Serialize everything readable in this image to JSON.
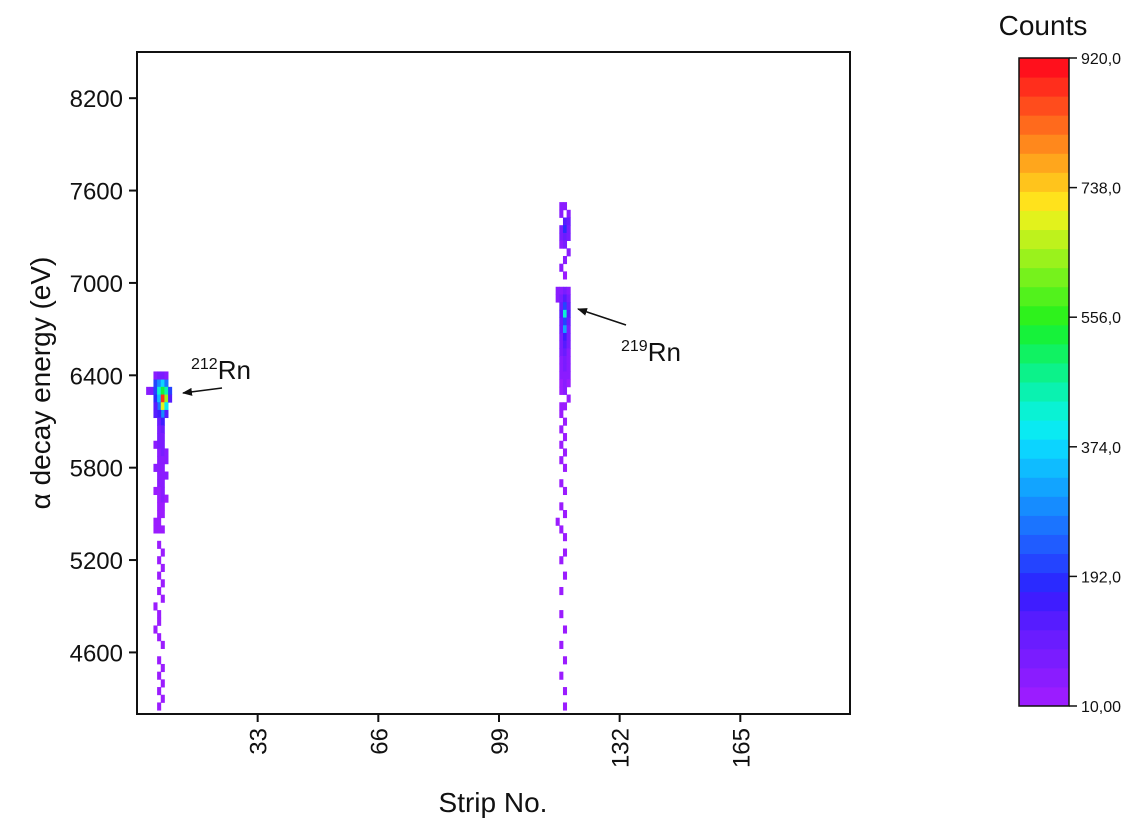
{
  "chart_data": {
    "type": "heatmap",
    "xlabel": "Strip No.",
    "ylabel": "α decay energy (eV)",
    "xlim": [
      0,
      195
    ],
    "ylim": [
      4200,
      8500
    ],
    "x_ticks": [
      "33",
      "66",
      "99",
      "132",
      "165"
    ],
    "x_tick_values": [
      33,
      66,
      99,
      132,
      165
    ],
    "y_ticks": [
      "4600",
      "5200",
      "5800",
      "6400",
      "7000",
      "7600",
      "8200"
    ],
    "y_tick_values": [
      4600,
      5200,
      5800,
      6400,
      7000,
      7600,
      8200
    ],
    "annotations": [
      {
        "id": "rn212",
        "mass": "212",
        "element": "Rn",
        "x": 9,
        "y": 6250
      },
      {
        "id": "rn219",
        "mass": "219",
        "element": "Rn",
        "x": 120,
        "y": 6800
      }
    ],
    "colorbar": {
      "title": "Counts",
      "min": 10,
      "max": 920,
      "tick_labels": [
        "920,0",
        "738,0",
        "556,0",
        "374,0",
        "192,0",
        "10,00"
      ],
      "tick_values": [
        920,
        738,
        556,
        374,
        192,
        10
      ],
      "colors": [
        "#9b1cff",
        "#8a1cff",
        "#7a1cff",
        "#6a1cff",
        "#561cff",
        "#3f1cff",
        "#2a2aff",
        "#2444ff",
        "#205cff",
        "#1b74ff",
        "#168cff",
        "#12a4ff",
        "#0fbcff",
        "#0cd4ff",
        "#0aeaf2",
        "#0af2d4",
        "#0af2b0",
        "#0cf28a",
        "#10f262",
        "#16f23a",
        "#2ef21c",
        "#52f21c",
        "#76f21c",
        "#9af21c",
        "#bef21c",
        "#e2f21c",
        "#ffe21c",
        "#ffc41c",
        "#ffa61c",
        "#ff881c",
        "#ff6a1c",
        "#ff4c1c",
        "#ff2e1c",
        "#ff101c"
      ]
    },
    "points": [
      [
        3,
        6300,
        60
      ],
      [
        4,
        6300,
        80
      ],
      [
        5,
        6350,
        200
      ],
      [
        5,
        6300,
        220
      ],
      [
        5,
        6250,
        180
      ],
      [
        6,
        6350,
        300
      ],
      [
        6,
        6300,
        420
      ],
      [
        6,
        6250,
        350
      ],
      [
        6,
        6200,
        260
      ],
      [
        7,
        6350,
        380
      ],
      [
        7,
        6300,
        520
      ],
      [
        7,
        6250,
        880
      ],
      [
        7,
        6200,
        700
      ],
      [
        7,
        6150,
        300
      ],
      [
        8,
        6350,
        260
      ],
      [
        8,
        6300,
        460
      ],
      [
        8,
        6250,
        650
      ],
      [
        8,
        6200,
        400
      ],
      [
        9,
        6300,
        200
      ],
      [
        9,
        6250,
        120
      ],
      [
        5,
        6400,
        60
      ],
      [
        6,
        6400,
        70
      ],
      [
        7,
        6400,
        80
      ],
      [
        8,
        6400,
        60
      ],
      [
        6,
        6150,
        160
      ],
      [
        5,
        6150,
        120
      ],
      [
        6,
        6100,
        110
      ],
      [
        7,
        6100,
        150
      ],
      [
        8,
        6150,
        140
      ],
      [
        5,
        6200,
        130
      ],
      [
        6,
        6050,
        90
      ],
      [
        7,
        6050,
        100
      ],
      [
        6,
        6000,
        80
      ],
      [
        7,
        6000,
        90
      ],
      [
        5,
        5950,
        60
      ],
      [
        6,
        5950,
        70
      ],
      [
        7,
        5950,
        80
      ],
      [
        6,
        5900,
        60
      ],
      [
        7,
        5900,
        70
      ],
      [
        8,
        5900,
        50
      ],
      [
        6,
        5850,
        50
      ],
      [
        7,
        5850,
        60
      ],
      [
        8,
        5850,
        50
      ],
      [
        6,
        5800,
        50
      ],
      [
        7,
        5800,
        60
      ],
      [
        5,
        5800,
        40
      ],
      [
        6,
        5750,
        40
      ],
      [
        7,
        5750,
        50
      ],
      [
        8,
        5750,
        40
      ],
      [
        6,
        5700,
        40
      ],
      [
        7,
        5700,
        40
      ],
      [
        6,
        5650,
        30
      ],
      [
        7,
        5650,
        40
      ],
      [
        5,
        5650,
        30
      ],
      [
        6,
        5600,
        30
      ],
      [
        7,
        5600,
        40
      ],
      [
        8,
        5600,
        30
      ],
      [
        6,
        5550,
        30
      ],
      [
        7,
        5550,
        30
      ],
      [
        6,
        5500,
        30
      ],
      [
        7,
        5500,
        30
      ],
      [
        5,
        5450,
        30
      ],
      [
        6,
        5450,
        30
      ],
      [
        6,
        5400,
        20
      ],
      [
        7,
        5400,
        30
      ],
      [
        5,
        5400,
        20
      ],
      [
        6,
        5300,
        20
      ],
      [
        7,
        5250,
        20
      ],
      [
        6,
        5200,
        20
      ],
      [
        7,
        5150,
        20
      ],
      [
        6,
        5100,
        20
      ],
      [
        7,
        5050,
        20
      ],
      [
        6,
        5000,
        20
      ],
      [
        7,
        4950,
        20
      ],
      [
        5,
        4900,
        20
      ],
      [
        6,
        4850,
        20
      ],
      [
        6,
        4800,
        20
      ],
      [
        5,
        4750,
        20
      ],
      [
        6,
        4700,
        20
      ],
      [
        7,
        4650,
        20
      ],
      [
        6,
        4550,
        20
      ],
      [
        7,
        4500,
        20
      ],
      [
        6,
        4450,
        20
      ],
      [
        7,
        4400,
        20
      ],
      [
        6,
        4350,
        20
      ],
      [
        7,
        4300,
        20
      ],
      [
        6,
        4250,
        20
      ],
      [
        116,
        7500,
        40
      ],
      [
        117,
        7500,
        50
      ],
      [
        118,
        7450,
        60
      ],
      [
        116,
        7450,
        50
      ],
      [
        117,
        7400,
        120
      ],
      [
        118,
        7400,
        110
      ],
      [
        116,
        7350,
        90
      ],
      [
        117,
        7350,
        180
      ],
      [
        118,
        7350,
        90
      ],
      [
        116,
        7300,
        80
      ],
      [
        117,
        7300,
        100
      ],
      [
        118,
        7300,
        80
      ],
      [
        116,
        7250,
        60
      ],
      [
        117,
        7250,
        70
      ],
      [
        118,
        7200,
        50
      ],
      [
        117,
        7150,
        40
      ],
      [
        116,
        7100,
        40
      ],
      [
        117,
        7050,
        30
      ],
      [
        115,
        6950,
        40
      ],
      [
        116,
        6950,
        60
      ],
      [
        117,
        6950,
        80
      ],
      [
        118,
        6950,
        60
      ],
      [
        115,
        6900,
        60
      ],
      [
        116,
        6900,
        90
      ],
      [
        117,
        6900,
        140
      ],
      [
        118,
        6900,
        90
      ],
      [
        116,
        6850,
        100
      ],
      [
        117,
        6850,
        220
      ],
      [
        118,
        6850,
        110
      ],
      [
        116,
        6800,
        120
      ],
      [
        117,
        6800,
        420
      ],
      [
        118,
        6800,
        130
      ],
      [
        116,
        6750,
        110
      ],
      [
        117,
        6750,
        200
      ],
      [
        118,
        6750,
        100
      ],
      [
        116,
        6700,
        100
      ],
      [
        117,
        6700,
        320
      ],
      [
        118,
        6700,
        90
      ],
      [
        116,
        6650,
        90
      ],
      [
        117,
        6650,
        160
      ],
      [
        118,
        6650,
        80
      ],
      [
        116,
        6600,
        80
      ],
      [
        117,
        6600,
        130
      ],
      [
        118,
        6600,
        70
      ],
      [
        116,
        6550,
        70
      ],
      [
        117,
        6550,
        100
      ],
      [
        118,
        6550,
        60
      ],
      [
        116,
        6500,
        60
      ],
      [
        117,
        6500,
        90
      ],
      [
        118,
        6500,
        50
      ],
      [
        116,
        6450,
        50
      ],
      [
        117,
        6450,
        70
      ],
      [
        118,
        6450,
        40
      ],
      [
        116,
        6400,
        40
      ],
      [
        117,
        6400,
        60
      ],
      [
        118,
        6400,
        40
      ],
      [
        116,
        6350,
        30
      ],
      [
        117,
        6350,
        50
      ],
      [
        118,
        6350,
        30
      ],
      [
        116,
        6300,
        30
      ],
      [
        117,
        6300,
        40
      ],
      [
        118,
        6250,
        30
      ],
      [
        116,
        6200,
        30
      ],
      [
        117,
        6200,
        30
      ],
      [
        116,
        6150,
        20
      ],
      [
        117,
        6100,
        20
      ],
      [
        116,
        6050,
        20
      ],
      [
        117,
        6000,
        20
      ],
      [
        116,
        5950,
        20
      ],
      [
        117,
        5900,
        20
      ],
      [
        116,
        5850,
        20
      ],
      [
        117,
        5800,
        20
      ],
      [
        116,
        5700,
        20
      ],
      [
        117,
        5650,
        20
      ],
      [
        116,
        5550,
        20
      ],
      [
        117,
        5500,
        20
      ],
      [
        115,
        5450,
        20
      ],
      [
        116,
        5400,
        20
      ],
      [
        117,
        5350,
        20
      ],
      [
        117,
        5250,
        20
      ],
      [
        116,
        5200,
        20
      ],
      [
        117,
        5100,
        20
      ],
      [
        116,
        5000,
        20
      ],
      [
        116,
        4850,
        20
      ],
      [
        117,
        4750,
        20
      ],
      [
        116,
        4650,
        20
      ],
      [
        117,
        4550,
        20
      ],
      [
        116,
        4450,
        20
      ],
      [
        117,
        4350,
        20
      ],
      [
        117,
        4250,
        20
      ]
    ]
  }
}
